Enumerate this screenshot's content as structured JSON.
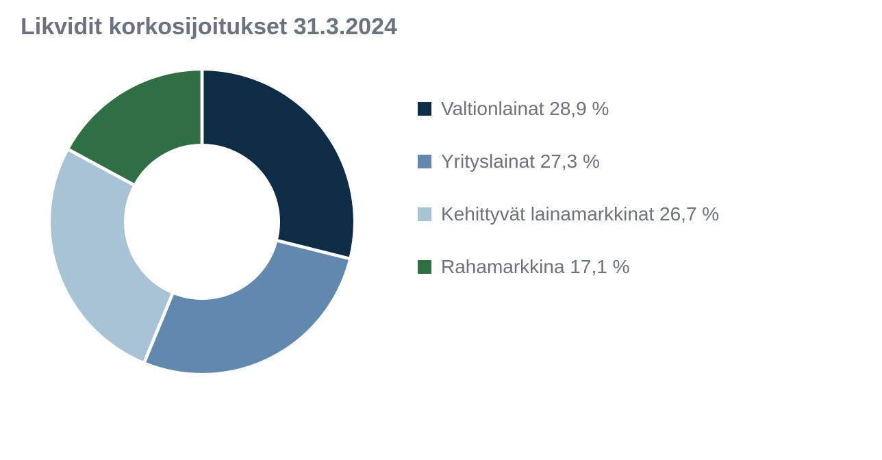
{
  "chart": {
    "type": "donut",
    "title": "Likvidit korkosijoitukset 31.3.2024",
    "title_fontsize": 34,
    "title_color": "#6b7280",
    "background_color": "#ffffff",
    "inner_radius_ratio": 0.5,
    "stroke_color": "#ffffff",
    "stroke_width": 2,
    "segments": [
      {
        "label": "Valtionlainat",
        "value": 28.9,
        "color": "#0d2c46"
      },
      {
        "label": "Yrityslainat",
        "value": 27.3,
        "color": "#6189ad"
      },
      {
        "label": "Kehittyvät lainamarkkinat",
        "value": 26.7,
        "color": "#a8c2d6"
      },
      {
        "label": "Rahamarkkina",
        "value": 17.1,
        "color": "#2e7043"
      }
    ],
    "legend": {
      "position": "right",
      "marker_size": 20,
      "marker_shape": "square",
      "label_fontsize": 28,
      "label_color": "#6b7280",
      "items": [
        {
          "text": "Valtionlainat 28,9 %",
          "color": "#0d2c46"
        },
        {
          "text": "Yrityslainat 27,3 %",
          "color": "#6189ad"
        },
        {
          "text": "Kehittyvät lainamarkkinat 26,7 %",
          "color": "#a8c2d6"
        },
        {
          "text": "Rahamarkkina 17,1 %",
          "color": "#2e7043"
        }
      ]
    }
  }
}
